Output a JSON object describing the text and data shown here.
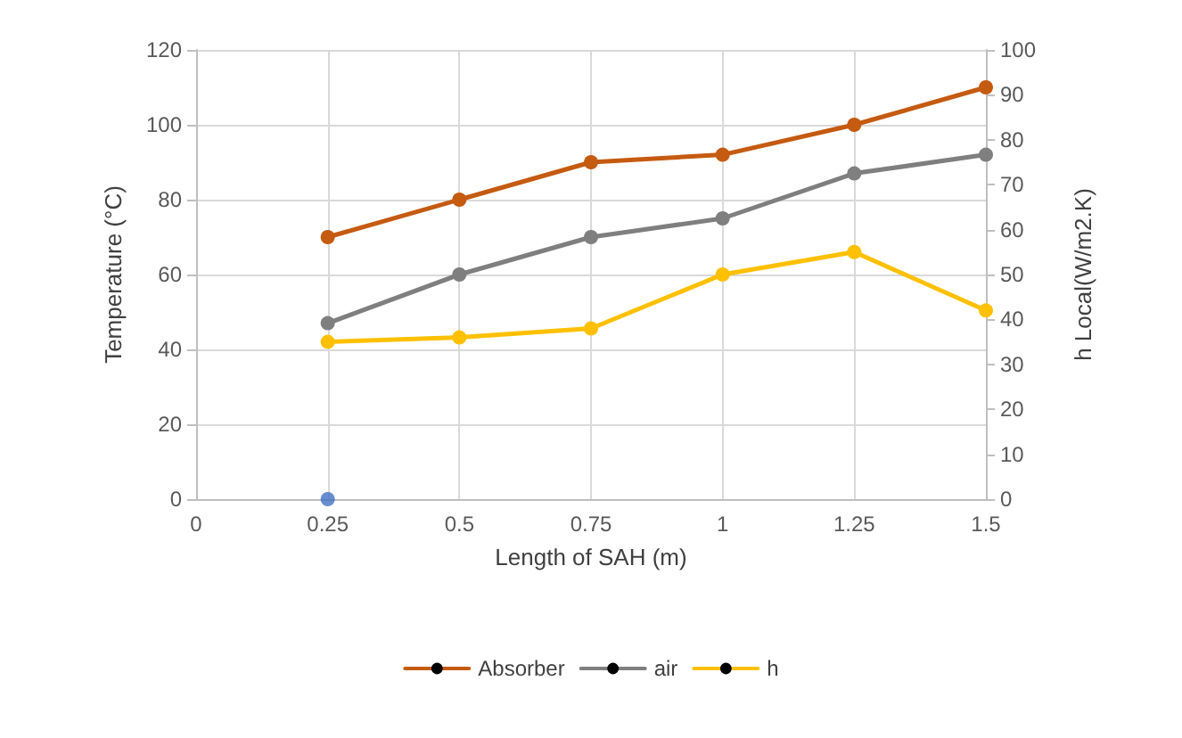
{
  "chart_data": {
    "type": "line",
    "xlabel": "Length of SAH (m)",
    "ylabel": "Temperature (°C)",
    "y2label": "h Local(W/m2.K)",
    "x": [
      0.25,
      0.5,
      0.75,
      1,
      1.25,
      1.5
    ],
    "xlim": [
      0,
      1.5
    ],
    "xticks": [
      0,
      0.25,
      0.5,
      0.75,
      1,
      1.25,
      1.5
    ],
    "ylim": [
      0,
      120
    ],
    "yticks": [
      0,
      20,
      40,
      60,
      80,
      100,
      120
    ],
    "y2lim": [
      0,
      100
    ],
    "y2ticks": [
      0,
      10,
      20,
      30,
      40,
      50,
      60,
      70,
      80,
      90,
      100
    ],
    "grid": true,
    "legend": "bottom",
    "marker": "circle",
    "series": [
      {
        "name": "Absorber",
        "color": "#c55a11",
        "values": [
          70,
          80,
          90,
          92,
          100,
          110
        ]
      },
      {
        "name": "air",
        "color": "#7f7f7f",
        "values": [
          47,
          60,
          70,
          75,
          87,
          92
        ]
      },
      {
        "name": "h",
        "color": "#ffc000",
        "axis": "y2",
        "values": [
          35,
          36,
          38,
          50,
          55,
          42
        ]
      },
      {
        "type": "scatter",
        "color": "#4472c4",
        "x": [
          0.25
        ],
        "values": [
          0
        ]
      }
    ]
  }
}
